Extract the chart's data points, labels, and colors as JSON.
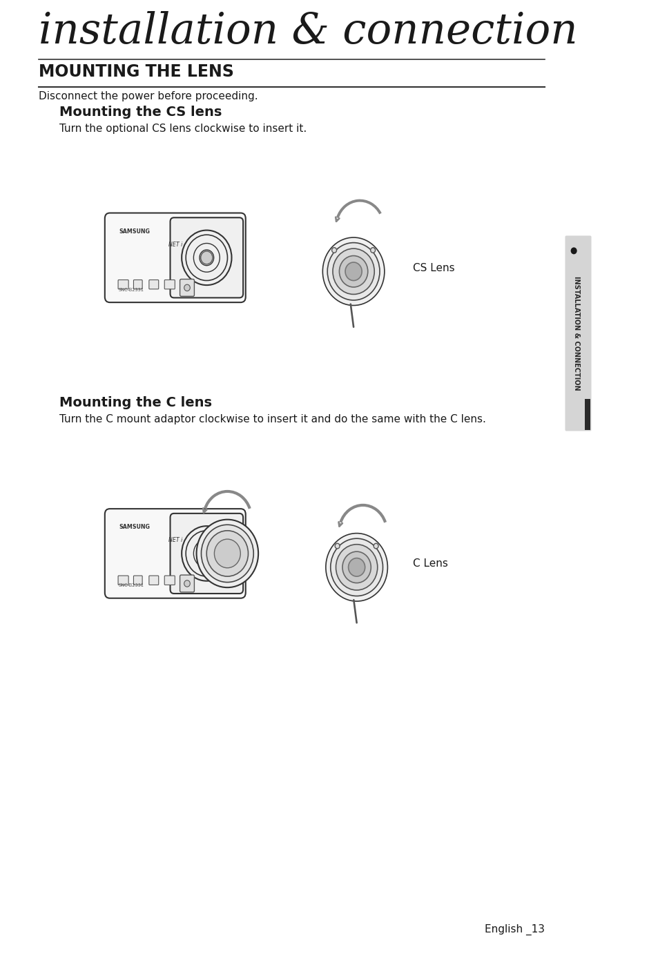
{
  "background_color": "#ffffff",
  "page_title": "installation & connection",
  "section_title": "MOUNTING THE LENS",
  "intro_text": "Disconnect the power before proceeding.",
  "subsection1_title": "Mounting the CS lens",
  "subsection1_text": "Turn the optional CS lens clockwise to insert it.",
  "subsection2_title": "Mounting the C lens",
  "subsection2_text": "Turn the C mount adaptor clockwise to insert it and do the same with the C lens.",
  "cs_lens_label": "CS Lens",
  "c_lens_label": "C Lens",
  "footer_text": "English _13",
  "sidebar_text": "INSTALLATION & CONNECTION",
  "text_color": "#1a1a1a",
  "line_color": "#333333",
  "sidebar_bg": "#d0d0d0",
  "sidebar_tab_color": "#2a2a2a"
}
